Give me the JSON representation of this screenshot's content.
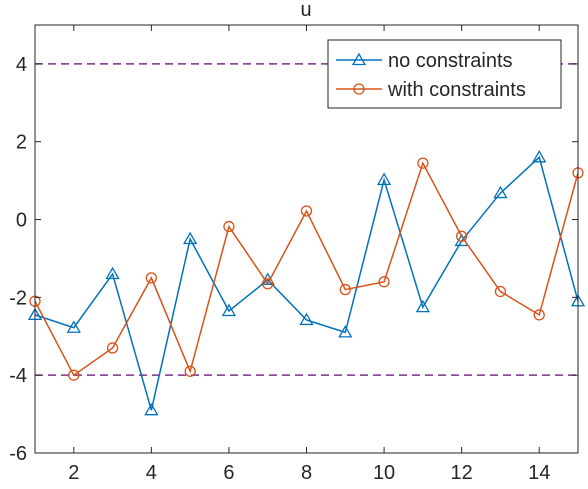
{
  "chart_data": {
    "type": "line",
    "title": "u",
    "xlabel": "",
    "ylabel": "",
    "xlim": [
      1,
      15
    ],
    "ylim": [
      -6,
      5
    ],
    "x_ticks": [
      2,
      4,
      6,
      8,
      10,
      12,
      14
    ],
    "y_ticks": [
      -6,
      -4,
      -2,
      0,
      2,
      4
    ],
    "x": [
      1,
      2,
      3,
      4,
      5,
      6,
      7,
      8,
      9,
      10,
      11,
      12,
      13,
      14,
      15
    ],
    "series": [
      {
        "name": "no constraints",
        "color": "#0072BD",
        "marker": "triangle",
        "values": [
          -2.45,
          -2.78,
          -1.4,
          -4.9,
          -0.5,
          -2.35,
          -1.55,
          -2.58,
          -2.9,
          1.02,
          -2.25,
          -0.55,
          0.68,
          1.6,
          -2.1
        ]
      },
      {
        "name": "with constraints",
        "color": "#D95319",
        "marker": "circle",
        "values": [
          -2.1,
          -4.0,
          -3.3,
          -1.5,
          -3.9,
          -0.18,
          -1.65,
          0.22,
          -1.8,
          -1.6,
          1.45,
          -0.43,
          -1.85,
          -2.45,
          1.2
        ]
      }
    ],
    "constraint_lines": {
      "values": [
        4,
        -4
      ],
      "color": "#7E2F8E",
      "style": "dashed"
    },
    "legend_position": "top-right",
    "grid": false
  }
}
